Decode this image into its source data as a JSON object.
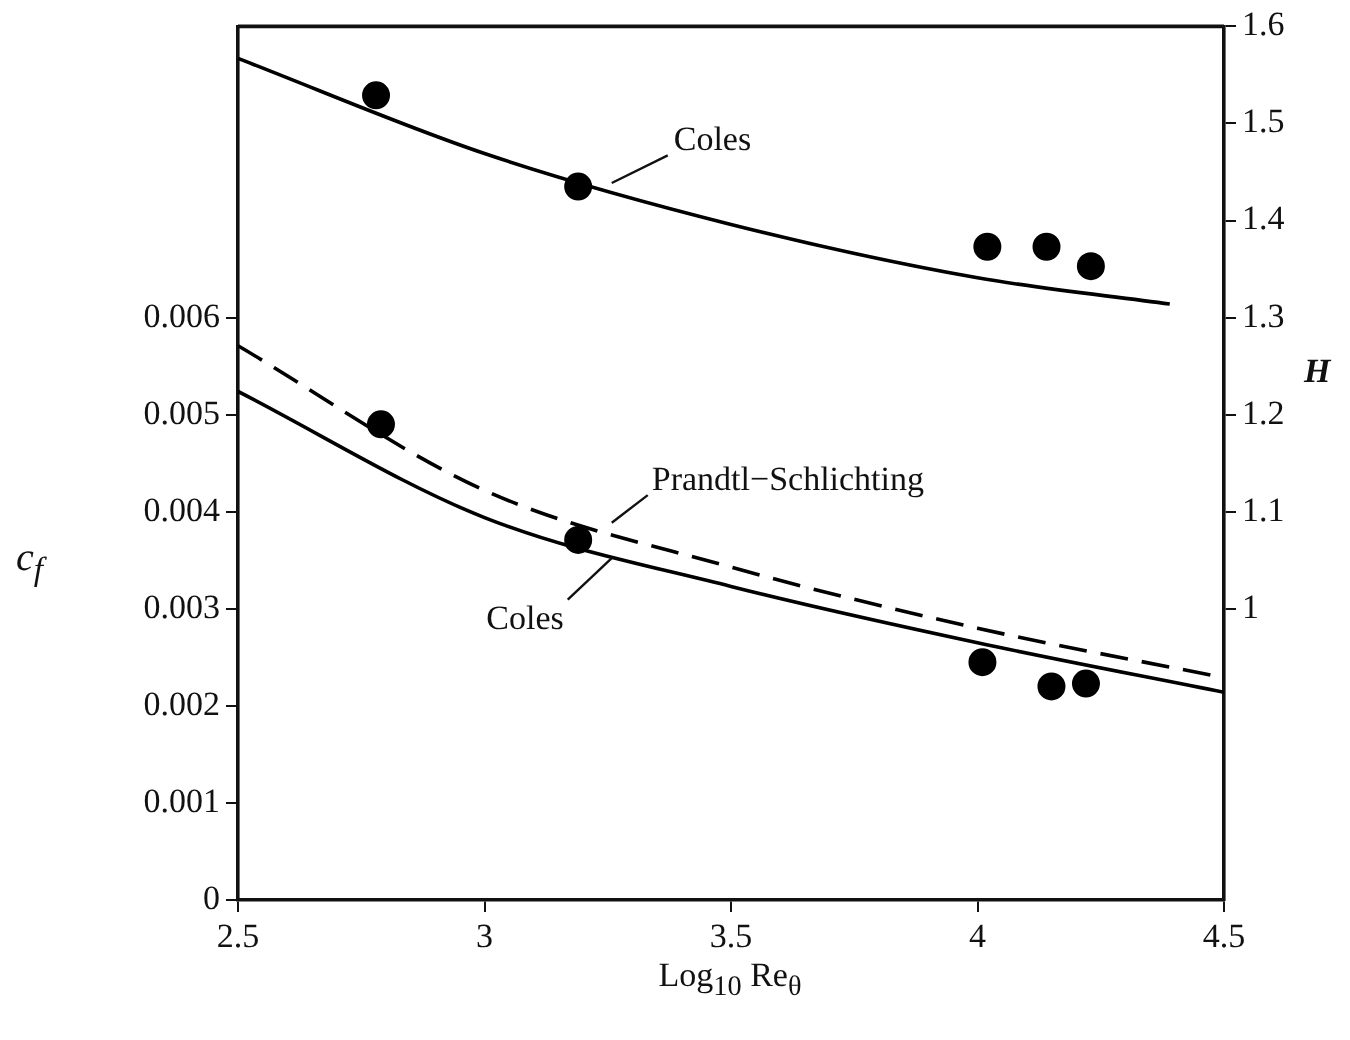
{
  "chart_data": {
    "type": "line",
    "xlabel": "Log$_{10}$ Re$_{θ}$",
    "ylabel": "c$_{f}$",
    "y2label": "H",
    "xlim": [
      2.5,
      4.5
    ],
    "xticks": [
      2.5,
      3,
      3.5,
      4,
      4.5
    ],
    "ylim": [
      0,
      0.009
    ],
    "yticks": [
      0,
      0.001,
      0.002,
      0.003,
      0.004,
      0.005,
      0.006
    ],
    "y2lim": [
      0.7,
      1.6
    ],
    "y2ticks": [
      1.0,
      1.1,
      1.2,
      1.3,
      1.4,
      1.5,
      1.6
    ],
    "series": [
      {
        "name": "Coles",
        "color": "#000000",
        "axis": "y2",
        "line_style": "solid",
        "x": [
          2.5,
          3.0,
          3.5,
          4.0,
          4.39
        ],
        "values": [
          1.567,
          1.469,
          1.396,
          1.341,
          1.314
        ]
      },
      {
        "type": "scatter",
        "color": "#000000",
        "axis": "y2",
        "marker": "circle",
        "x": [
          2.78,
          3.19,
          4.02,
          4.14,
          4.23
        ],
        "values": [
          1.529,
          1.435,
          1.373,
          1.373,
          1.353
        ]
      },
      {
        "name": "Prandtl−Schlichting",
        "color": "#000000",
        "line_style": "dashed",
        "x": [
          2.5,
          3.0,
          3.5,
          4.0,
          4.5
        ],
        "values": [
          0.00571,
          0.00422,
          0.00343,
          0.0028,
          0.00229
        ]
      },
      {
        "name": "Coles",
        "color": "#000000",
        "line_style": "solid",
        "x": [
          2.5,
          3.0,
          3.5,
          4.0,
          4.5
        ],
        "values": [
          0.00524,
          0.00394,
          0.00323,
          0.00265,
          0.00214
        ]
      },
      {
        "type": "scatter",
        "color": "#000000",
        "marker": "circle",
        "x": [
          2.79,
          3.19,
          4.01,
          4.15,
          4.22
        ],
        "values": [
          0.0049,
          0.00371,
          0.00245,
          0.0022,
          0.00223
        ]
      }
    ],
    "grid": false,
    "legend": false
  }
}
